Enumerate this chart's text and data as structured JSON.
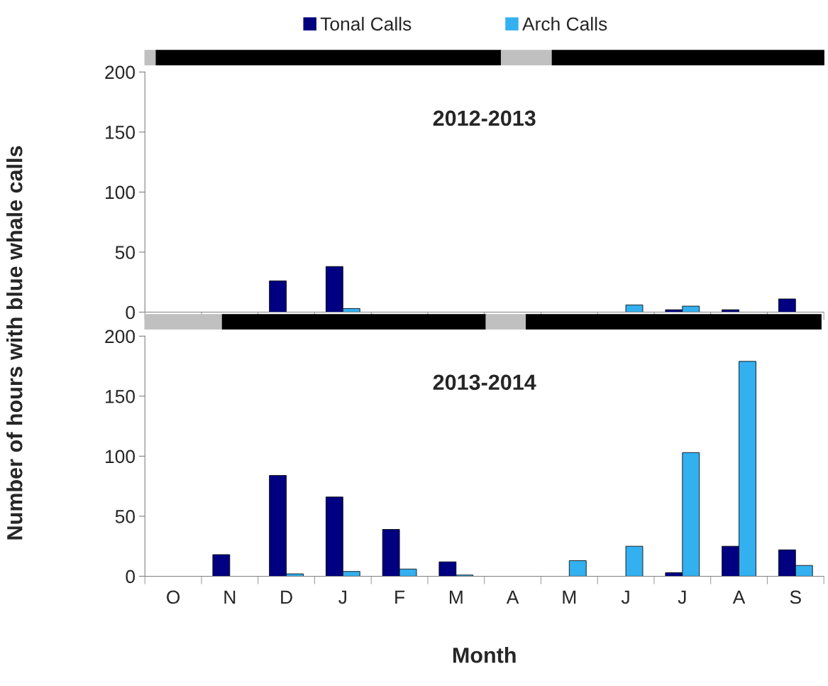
{
  "chart_data": [
    {
      "type": "bar",
      "title": "2012-2013",
      "ylabel": "Number of hours with blue whale calls",
      "categories": [
        null,
        null,
        null,
        null,
        null,
        null,
        null,
        null,
        null,
        null,
        null,
        null
      ],
      "series": [
        {
          "name": "Tonal Calls",
          "color": "#000080",
          "values": [
            0,
            0,
            26,
            38,
            0,
            0,
            0,
            0,
            0,
            2,
            2,
            11
          ]
        },
        {
          "name": "Arch Calls",
          "color": "#33b0f0",
          "values": [
            0,
            0,
            0,
            3,
            0,
            0,
            0,
            0,
            6,
            5,
            0,
            0
          ]
        }
      ],
      "ylim": [
        0,
        200
      ],
      "yticks": [
        0,
        50,
        100,
        150,
        200
      ],
      "legend": "top",
      "tick_labels": "y"
    },
    {
      "type": "bar",
      "title": "2013-2014",
      "xlabel": "Month",
      "categories": [
        "O",
        "N",
        "D",
        "J",
        "F",
        "M",
        "A",
        "M",
        "J",
        "J",
        "A",
        "S"
      ],
      "series": [
        {
          "color": "#000080",
          "values": [
            0,
            18,
            84,
            66,
            39,
            12,
            0,
            0,
            0,
            3,
            25,
            22
          ]
        },
        {
          "color": "#33b0f0",
          "values": [
            0,
            0,
            2,
            4,
            6,
            1,
            0,
            13,
            25,
            103,
            179,
            9
          ]
        }
      ],
      "ylim": [
        0,
        200
      ],
      "yticks": [
        0,
        50,
        100,
        150,
        200
      ]
    }
  ]
}
